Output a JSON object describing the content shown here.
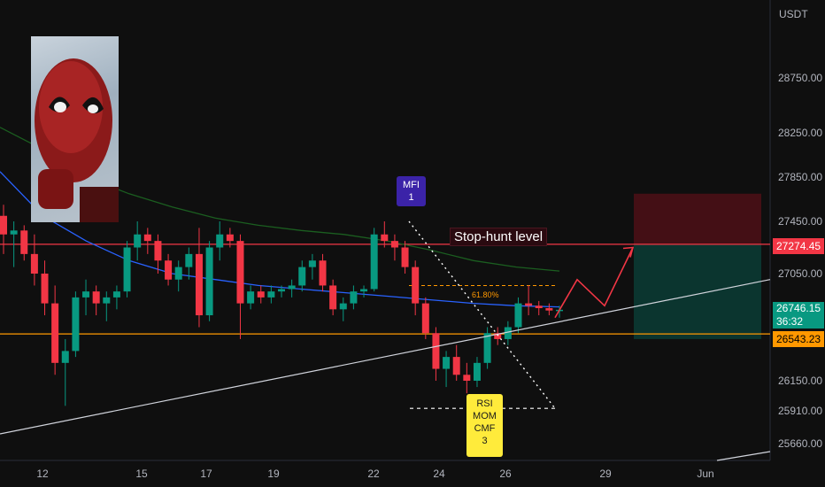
{
  "chart_data": {
    "type": "candlestick",
    "symbol_unit": "USDT",
    "y_ticks": [
      "28750.00",
      "28250.00",
      "27850.00",
      "27450.00",
      "27050.00",
      "26150.00",
      "25910.00",
      "25660.00"
    ],
    "x_ticks": [
      "12",
      "15",
      "17",
      "19",
      "22",
      "24",
      "26",
      "29",
      "Jun"
    ],
    "ylim": [
      25420,
      29250
    ],
    "price_tags": {
      "resistance": "27274.45",
      "last_price": "26746.15",
      "countdown": "36:32",
      "support": "26543.23"
    },
    "annotations": {
      "stop_hunt": "Stop-hunt level",
      "fib": "61.80%",
      "mfi_line1": "MFI",
      "mfi_line2": "1",
      "rsi_line1": "RSI",
      "rsi_line2": "MOM",
      "rsi_line3": "CMF",
      "rsi_line4": "3"
    },
    "levels": {
      "resistance": 27274.45,
      "support": 26543.23,
      "fib_618": 26950
    },
    "candles": [
      [
        27500,
        27600,
        27200,
        27350
      ],
      [
        27350,
        27450,
        27100,
        27380
      ],
      [
        27380,
        27420,
        27150,
        27200
      ],
      [
        27200,
        27350,
        26950,
        27050
      ],
      [
        27050,
        27150,
        26700,
        26800
      ],
      [
        26800,
        26950,
        26200,
        26300
      ],
      [
        26300,
        26500,
        25950,
        26400
      ],
      [
        26400,
        26900,
        26350,
        26850
      ],
      [
        26850,
        27000,
        26700,
        26900
      ],
      [
        26900,
        26950,
        26700,
        26800
      ],
      [
        26800,
        26900,
        26650,
        26850
      ],
      [
        26850,
        26950,
        26750,
        26900
      ],
      [
        26900,
        27300,
        26850,
        27250
      ],
      [
        27250,
        27450,
        27150,
        27350
      ],
      [
        27350,
        27400,
        27200,
        27300
      ],
      [
        27300,
        27350,
        27050,
        27150
      ],
      [
        27150,
        27200,
        26950,
        27000
      ],
      [
        27000,
        27150,
        26900,
        27100
      ],
      [
        27100,
        27250,
        27000,
        27200
      ],
      [
        27200,
        27400,
        26600,
        26700
      ],
      [
        26700,
        27300,
        26650,
        27250
      ],
      [
        27250,
        27450,
        27150,
        27350
      ],
      [
        27350,
        27400,
        27250,
        27300
      ],
      [
        27300,
        27350,
        26500,
        26800
      ],
      [
        26800,
        26950,
        26750,
        26900
      ],
      [
        26900,
        26950,
        26800,
        26850
      ],
      [
        26850,
        26950,
        26800,
        26900
      ],
      [
        26900,
        26950,
        26850,
        26920
      ],
      [
        26920,
        27000,
        26850,
        26950
      ],
      [
        26950,
        27150,
        26900,
        27100
      ],
      [
        27100,
        27200,
        27000,
        27150
      ],
      [
        27150,
        27200,
        26900,
        26950
      ],
      [
        26950,
        27000,
        26700,
        26750
      ],
      [
        26750,
        26850,
        26650,
        26800
      ],
      [
        26800,
        26950,
        26750,
        26900
      ],
      [
        26900,
        26950,
        26850,
        26920
      ],
      [
        26920,
        27400,
        26900,
        27350
      ],
      [
        27350,
        27450,
        27250,
        27300
      ],
      [
        27300,
        27350,
        27150,
        27250
      ],
      [
        27250,
        27300,
        27050,
        27100
      ],
      [
        27100,
        27150,
        26700,
        26800
      ],
      [
        26800,
        26850,
        26500,
        26550
      ],
      [
        26550,
        26600,
        26150,
        26250
      ],
      [
        26250,
        26400,
        26100,
        26350
      ],
      [
        26350,
        26450,
        26150,
        26200
      ],
      [
        26200,
        26300,
        26050,
        26150
      ],
      [
        26150,
        26350,
        26100,
        26300
      ],
      [
        26300,
        26600,
        26250,
        26550
      ],
      [
        26550,
        26600,
        26450,
        26500
      ],
      [
        26500,
        26650,
        26450,
        26600
      ],
      [
        26600,
        26850,
        26550,
        26800
      ],
      [
        26800,
        26950,
        26700,
        26780
      ],
      [
        26780,
        26820,
        26700,
        26760
      ],
      [
        26760,
        26800,
        26700,
        26740
      ],
      [
        26740,
        26780,
        26680,
        26746
      ]
    ],
    "ma_blue": [
      27900,
      27500,
      27300,
      27150,
      27050,
      27000,
      26950,
      26920,
      26890,
      26860,
      26830,
      26800,
      26780,
      26770
    ],
    "ma_green": [
      28300,
      28100,
      27850,
      27700,
      27580,
      27480,
      27420,
      27380,
      27350,
      27300,
      27230,
      27150,
      27100,
      27070
    ],
    "trendline_from": [
      "12",
      25880
    ],
    "trendline_to": [
      "Jun",
      27150
    ],
    "projection": [
      26680,
      27000,
      26780,
      27250
    ]
  }
}
